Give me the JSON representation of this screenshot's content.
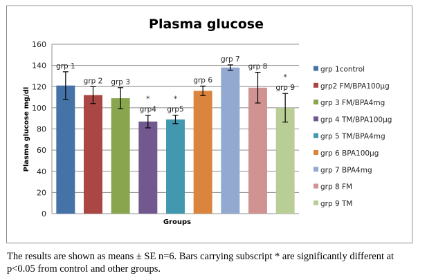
{
  "chart_data": {
    "type": "bar",
    "title": "Plasma glucose",
    "xlabel": "Groups",
    "ylabel": "Plasma glucose  mg/dl",
    "ylim": [
      0,
      160
    ],
    "yticks": [
      0,
      20,
      40,
      60,
      80,
      100,
      120,
      140,
      160
    ],
    "grid": true,
    "legend_position": "right",
    "categories": [
      "grp 1",
      "grp 2",
      "grp 3",
      "grp4",
      "grp5",
      "grp 6",
      "grp 7",
      "grp 8",
      "grp 9"
    ],
    "values": [
      121,
      112,
      109,
      87,
      89,
      116,
      138,
      119,
      100
    ],
    "error_bars": [
      13,
      8,
      10,
      6,
      4,
      4.5,
      2.5,
      14.5,
      13.5
    ],
    "significant": [
      false,
      false,
      false,
      true,
      true,
      false,
      false,
      false,
      true
    ],
    "significance_marker": "*",
    "colors": [
      "#4572a7",
      "#aa4643",
      "#89a54e",
      "#71588f",
      "#4198af",
      "#db843d",
      "#93a9cf",
      "#d19392",
      "#b9cd96"
    ],
    "legend": [
      "grp 1control",
      "grp2 FM/BPA100µg",
      "grp 3 FM/BPA4mg",
      "grp 4 TM/BPA100µg",
      "grp 5 TM/BPA4mg",
      "grp 6 BPA100µg",
      "grp 7 BPA4mg",
      "grp 8 FM",
      "grp 9 TM"
    ]
  },
  "caption": "The results are shown as means ± SE n=6. Bars carrying subscript * are significantly different at p<0.05 from control and other groups."
}
